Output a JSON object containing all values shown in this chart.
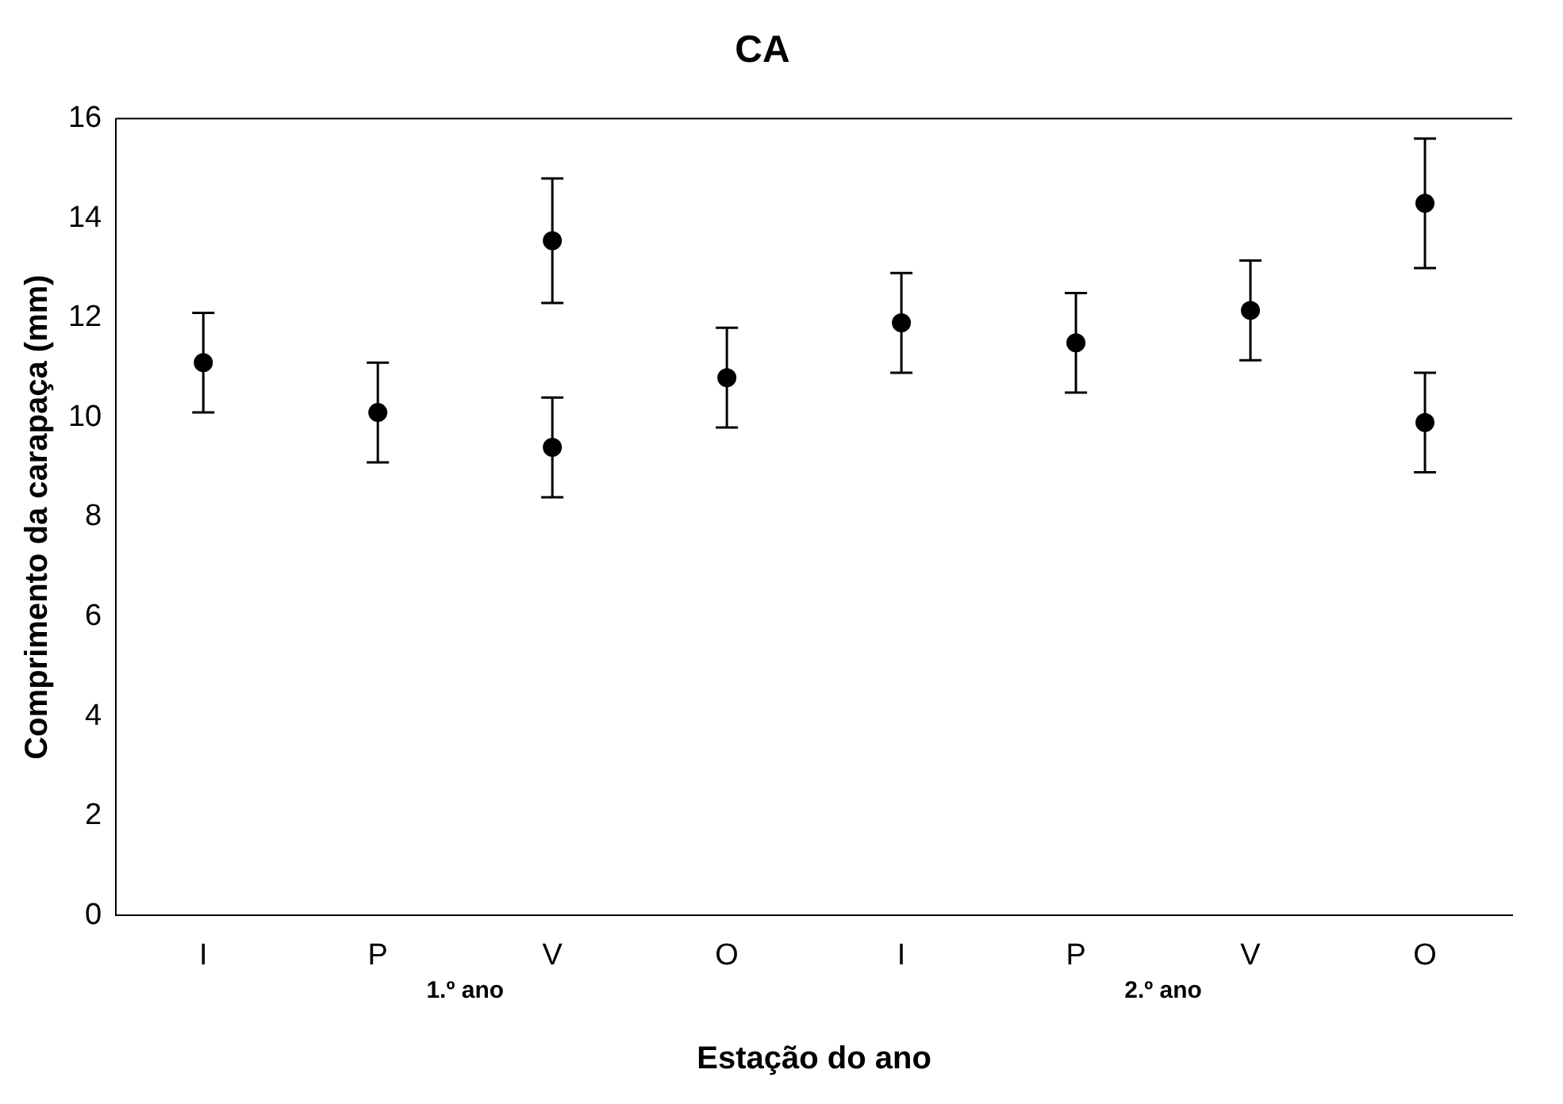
{
  "chart_data": {
    "type": "scatter",
    "title": "CA",
    "xlabel": "Estação do ano",
    "ylabel": "Comprimento da carapaça (mm)",
    "categories": [
      "I",
      "P",
      "V",
      "O",
      "I",
      "P",
      "V",
      "O"
    ],
    "series": [
      {
        "color": "#000000",
        "values": [
          11.1,
          10.1,
          13.55,
          10.8,
          11.9,
          11.5,
          12.15,
          14.3
        ],
        "errors": [
          1,
          1,
          1.25,
          1,
          1,
          1,
          1,
          1.3
        ]
      },
      {
        "color": "#000000",
        "values": [
          null,
          null,
          9.4,
          null,
          null,
          null,
          null,
          9.9
        ],
        "errors": [
          null,
          null,
          1,
          null,
          null,
          null,
          null,
          1
        ]
      }
    ],
    "ylim": [
      0,
      16
    ],
    "yticks": [
      0,
      2,
      4,
      6,
      8,
      10,
      12,
      14,
      16
    ],
    "grid": false,
    "legend": false,
    "marker": "circle",
    "annotations": [
      "1.º ano",
      "2.º ano"
    ]
  }
}
